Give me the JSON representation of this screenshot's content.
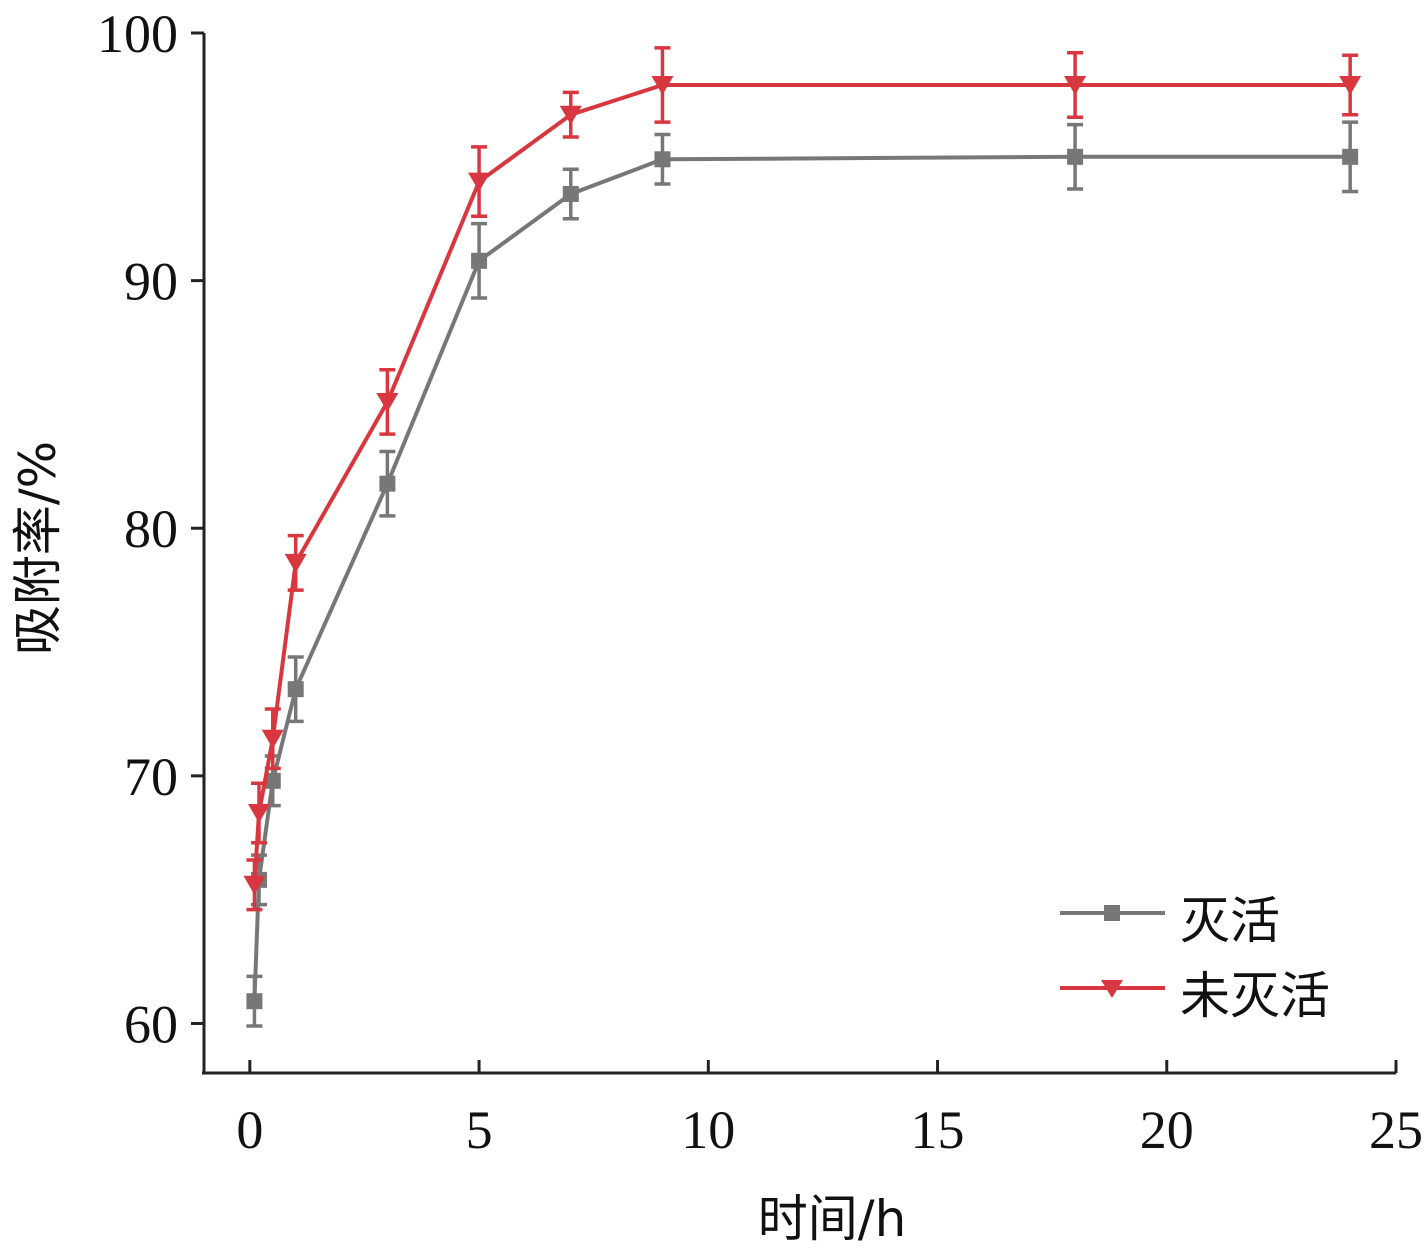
{
  "chart_data": {
    "type": "line",
    "xlabel": "时间/h",
    "ylabel": "吸附率/%",
    "xlim": [
      -1,
      25
    ],
    "ylim": [
      58,
      100
    ],
    "xticks": [
      0,
      5,
      10,
      15,
      20,
      25
    ],
    "yticks": [
      60,
      70,
      80,
      90,
      100
    ],
    "grid": false,
    "legend_position": "bottom-right",
    "series": [
      {
        "name": "灭活",
        "color": "#777777",
        "marker": "square",
        "points": [
          {
            "x": 0.1,
            "y": 60.9,
            "err": 1.0
          },
          {
            "x": 0.2,
            "y": 65.8,
            "err": 1.0
          },
          {
            "x": 0.5,
            "y": 69.8,
            "err": 1.0
          },
          {
            "x": 1,
            "y": 73.5,
            "err": 1.3
          },
          {
            "x": 3,
            "y": 81.8,
            "err": 1.3
          },
          {
            "x": 5,
            "y": 90.8,
            "err": 1.5
          },
          {
            "x": 7,
            "y": 93.5,
            "err": 1.0
          },
          {
            "x": 9,
            "y": 94.9,
            "err": 1.0
          },
          {
            "x": 18,
            "y": 95.0,
            "err": 1.3
          },
          {
            "x": 24,
            "y": 95.0,
            "err": 1.4
          }
        ]
      },
      {
        "name": "未灭活",
        "color": "#d9373f",
        "marker": "triangle-down",
        "points": [
          {
            "x": 0.1,
            "y": 65.6,
            "err": 1.0
          },
          {
            "x": 0.2,
            "y": 68.5,
            "err": 1.2
          },
          {
            "x": 0.5,
            "y": 71.5,
            "err": 1.2
          },
          {
            "x": 1,
            "y": 78.6,
            "err": 1.1
          },
          {
            "x": 3,
            "y": 85.1,
            "err": 1.3
          },
          {
            "x": 5,
            "y": 94.0,
            "err": 1.4
          },
          {
            "x": 7,
            "y": 96.7,
            "err": 0.9
          },
          {
            "x": 9,
            "y": 97.9,
            "err": 1.5
          },
          {
            "x": 18,
            "y": 97.9,
            "err": 1.3
          },
          {
            "x": 24,
            "y": 97.9,
            "err": 1.2
          }
        ]
      }
    ]
  }
}
